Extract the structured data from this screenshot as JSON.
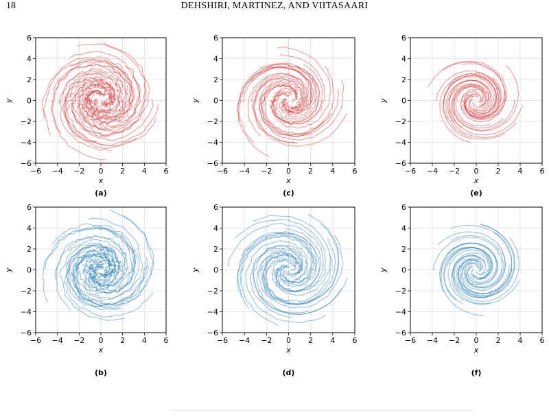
{
  "page": {
    "number": "18",
    "running_head": "DEHSHIRI, MARTINEZ, AND VIITASAARI"
  },
  "colors": {
    "red_trajectory": "#d62728",
    "blue_trajectory": "#1f77b4",
    "grid": "#dddddd",
    "axes": "#000000"
  },
  "chart_data": [
    {
      "type": "line",
      "panel": "(a)",
      "xlabel": "x",
      "ylabel": "y",
      "xlim": [
        -6,
        6
      ],
      "ylim": [
        -6,
        6
      ],
      "xticks": [
        -6,
        -4,
        -2,
        0,
        2,
        4,
        6
      ],
      "yticks": [
        -6,
        -4,
        -2,
        0,
        2,
        4,
        6
      ],
      "grid": true,
      "color": "red",
      "series_description_count": 22,
      "spiral": {
        "turns": 1.1,
        "noise": "high",
        "r_max": 5.8
      }
    },
    {
      "type": "line",
      "panel": "(c)",
      "xlabel": "x",
      "ylabel": "y",
      "xlim": [
        -6,
        6
      ],
      "ylim": [
        -6,
        6
      ],
      "xticks": [
        -6,
        -4,
        -2,
        0,
        2,
        4,
        6
      ],
      "yticks": [
        -6,
        -4,
        -2,
        0,
        2,
        4,
        6
      ],
      "grid": true,
      "color": "red",
      "series_description_count": 22,
      "spiral": {
        "turns": 1.0,
        "noise": "medium",
        "r_max": 5.8
      }
    },
    {
      "type": "line",
      "panel": "(e)",
      "xlabel": "x",
      "ylabel": "y",
      "xlim": [
        -6,
        6
      ],
      "ylim": [
        -6,
        6
      ],
      "xticks": [
        -6,
        -4,
        -2,
        0,
        2,
        4,
        6
      ],
      "yticks": [
        -6,
        -4,
        -2,
        0,
        2,
        4,
        6
      ],
      "grid": true,
      "color": "red",
      "series_description_count": 22,
      "spiral": {
        "turns": 1.0,
        "noise": "low",
        "r_max": 4.6
      }
    },
    {
      "type": "line",
      "panel": "(b)",
      "xlabel": "x",
      "ylabel": "y",
      "xlim": [
        -6,
        6
      ],
      "ylim": [
        -6,
        6
      ],
      "xticks": [
        -6,
        -4,
        -2,
        0,
        2,
        4,
        6
      ],
      "yticks": [
        -6,
        -4,
        -2,
        0,
        2,
        4,
        6
      ],
      "grid": true,
      "color": "blue",
      "series_description_count": 22,
      "spiral": {
        "turns": 1.1,
        "noise": "high",
        "r_max": 5.8
      }
    },
    {
      "type": "line",
      "panel": "(d)",
      "xlabel": "x",
      "ylabel": "y",
      "xlim": [
        -6,
        6
      ],
      "ylim": [
        -6,
        6
      ],
      "xticks": [
        -6,
        -4,
        -2,
        0,
        2,
        4,
        6
      ],
      "yticks": [
        -6,
        -4,
        -2,
        0,
        2,
        4,
        6
      ],
      "grid": true,
      "color": "blue",
      "series_description_count": 22,
      "spiral": {
        "turns": 1.0,
        "noise": "medium",
        "r_max": 5.8
      }
    },
    {
      "type": "line",
      "panel": "(f)",
      "xlabel": "x",
      "ylabel": "y",
      "xlim": [
        -6,
        6
      ],
      "ylim": [
        -6,
        6
      ],
      "xticks": [
        -6,
        -4,
        -2,
        0,
        2,
        4,
        6
      ],
      "yticks": [
        -6,
        -4,
        -2,
        0,
        2,
        4,
        6
      ],
      "grid": true,
      "color": "blue",
      "series_description_count": 22,
      "spiral": {
        "turns": 1.0,
        "noise": "low",
        "r_max": 4.6
      }
    }
  ]
}
